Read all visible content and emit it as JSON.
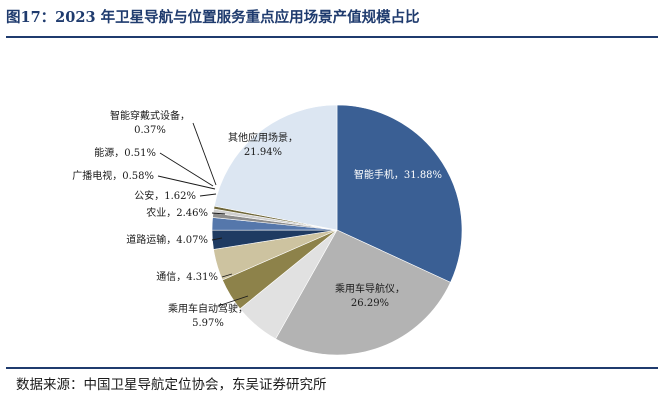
{
  "figure": {
    "title": "图17：2023 年卫星导航与位置服务重点应用场景产值规模占比",
    "source": "数据来源：中国卫星导航定位协会，东吴证券研究所"
  },
  "colors": {
    "title": "#1f3b6e",
    "rule": "#1f3b6e"
  },
  "chart_data": {
    "type": "pie",
    "title": "",
    "start": "12 o'clock, clockwise",
    "slices": [
      {
        "label": "智能手机",
        "value": 31.88,
        "pct_text": "31.88%",
        "color": "#3a5f94",
        "label_color": "#ffffff"
      },
      {
        "label": "乘用车导航仪",
        "value": 26.29,
        "pct_text": "26.29%",
        "color": "#b3b3b3",
        "label_color": "#1a1a1a"
      },
      {
        "label": "乘用车自动驾驶",
        "value": 5.97,
        "pct_text": "5.97%",
        "color": "#e1e1e1",
        "label_color": "#1a1a1a"
      },
      {
        "label": "通信",
        "value": 4.31,
        "pct_text": "4.31%",
        "color": "#8d824a",
        "label_color": "#1a1a1a"
      },
      {
        "label": "道路运输",
        "value": 4.07,
        "pct_text": "4.07%",
        "color": "#cdc3a0",
        "label_color": "#1a1a1a"
      },
      {
        "label": "农业",
        "value": 2.46,
        "pct_text": "2.46%",
        "color": "#1f3b62",
        "label_color": "#1a1a1a"
      },
      {
        "label": "公安",
        "value": 1.62,
        "pct_text": "1.62%",
        "color": "#5577ab",
        "label_color": "#1a1a1a"
      },
      {
        "label": "广播电视",
        "value": 0.58,
        "pct_text": "0.58%",
        "color": "#8c8c8c",
        "label_color": "#1a1a1a"
      },
      {
        "label": "能源",
        "value": 0.51,
        "pct_text": "0.51%",
        "color": "#cfcfcf",
        "label_color": "#1a1a1a"
      },
      {
        "label": "智能穿戴式设备",
        "value": 0.37,
        "pct_text": "0.37%",
        "color": "#6e6638",
        "label_color": "#1a1a1a"
      },
      {
        "label": "其他应用场景",
        "value": 21.94,
        "pct_text": "21.94%",
        "color": "#dce6f2",
        "label_color": "#1a1a1a"
      }
    ]
  }
}
